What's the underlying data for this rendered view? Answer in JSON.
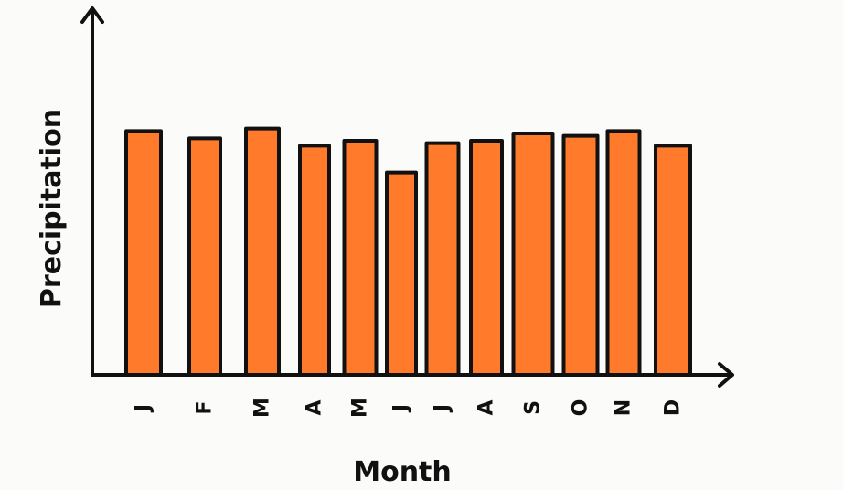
{
  "chart_data": {
    "type": "bar",
    "categories": [
      "J",
      "F",
      "M",
      "A",
      "M",
      "J",
      "J",
      "A",
      "S",
      "O",
      "N",
      "D"
    ],
    "values": [
      100,
      97,
      101,
      94,
      96,
      83,
      95,
      96,
      99,
      98,
      100,
      94
    ],
    "title": "",
    "xlabel": "Month",
    "ylabel": "Precipitation",
    "ylim": [
      0,
      150
    ],
    "grid": false,
    "legend": "none",
    "bar_color": "#ff7a2b",
    "outline_color": "#111111"
  }
}
